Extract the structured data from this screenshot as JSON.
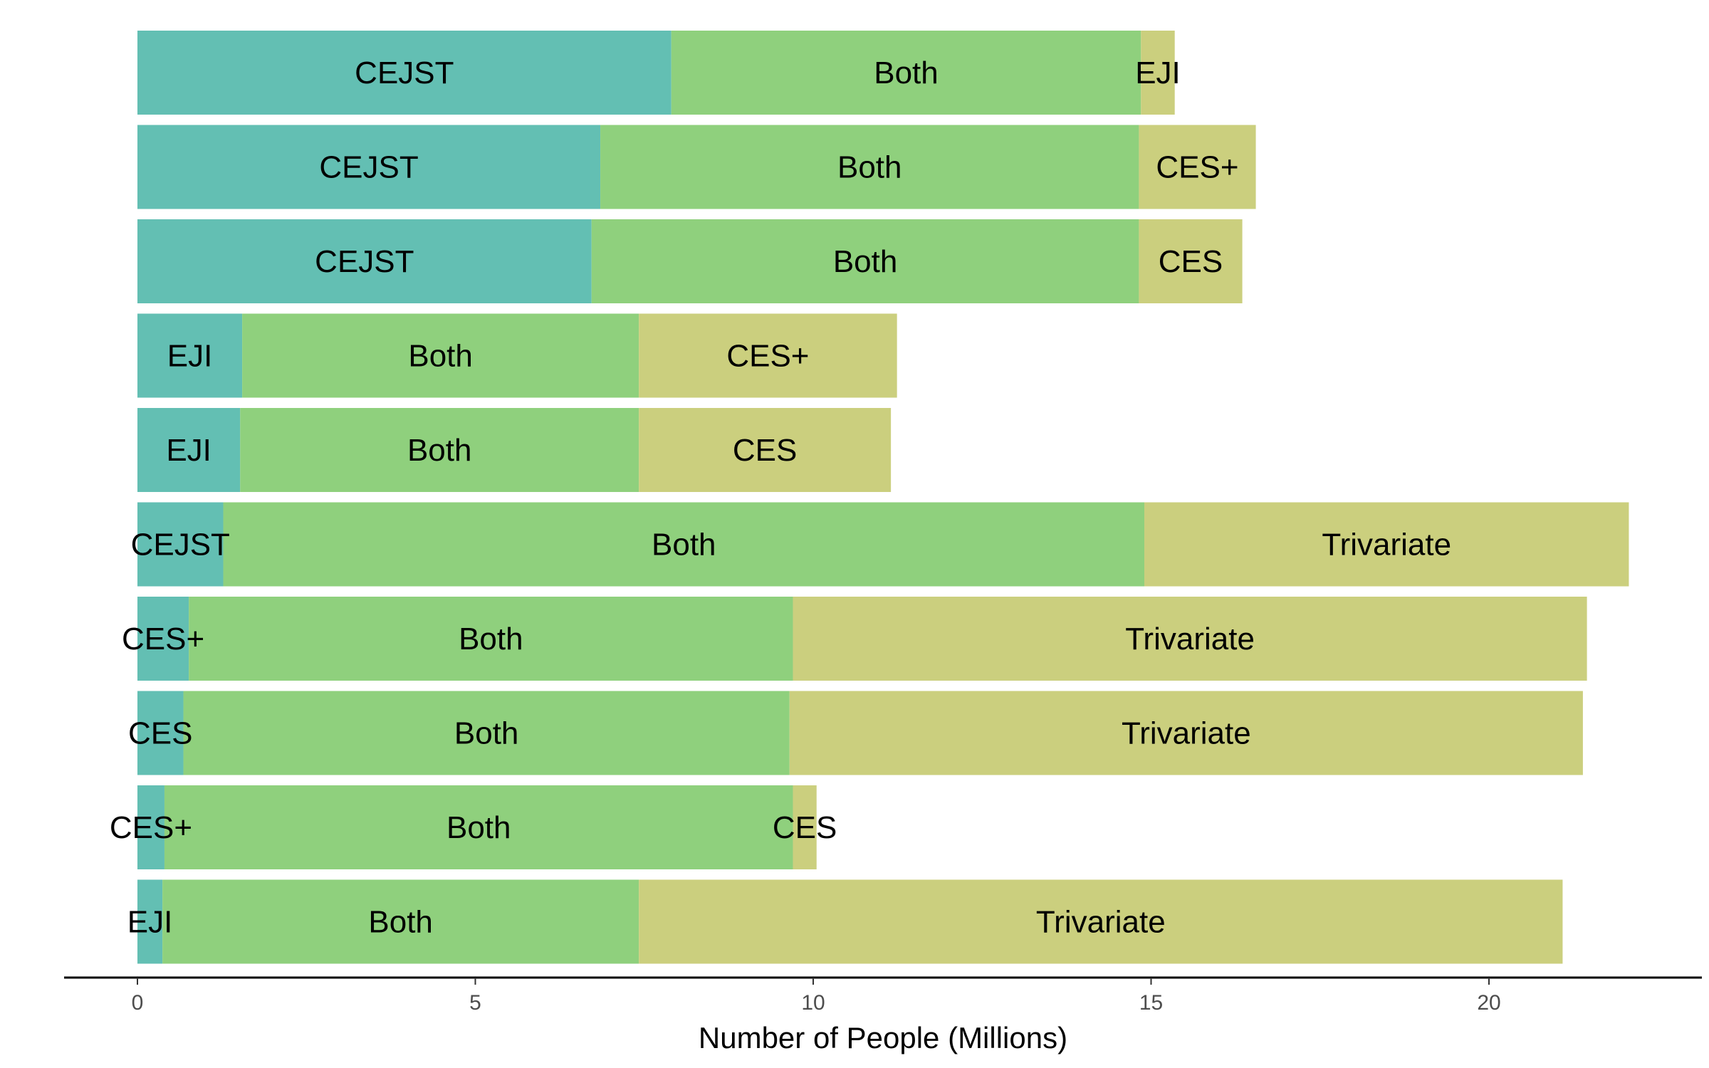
{
  "chart_data": {
    "type": "bar",
    "orientation": "horizontal",
    "stacked": true,
    "xlabel": "Number of People (Millions)",
    "ylabel": "",
    "xlim": [
      0,
      22.5
    ],
    "xticks": [
      0,
      5,
      10,
      15,
      20
    ],
    "grid": false,
    "legend": "none",
    "colors": {
      "first": "#63bfb3",
      "both": "#8fd07d",
      "third": "#cbcf7e"
    },
    "bars": [
      {
        "segments": [
          {
            "label": "CEJST",
            "value": 7.9
          },
          {
            "label": "Both",
            "value": 6.95
          },
          {
            "label": "EJI",
            "value": 0.5
          }
        ]
      },
      {
        "segments": [
          {
            "label": "CEJST",
            "value": 6.85
          },
          {
            "label": "Both",
            "value": 7.97
          },
          {
            "label": "CES+",
            "value": 1.73
          }
        ]
      },
      {
        "segments": [
          {
            "label": "CEJST",
            "value": 6.72
          },
          {
            "label": "Both",
            "value": 8.1
          },
          {
            "label": "CES",
            "value": 1.53
          }
        ]
      },
      {
        "segments": [
          {
            "label": "EJI",
            "value": 1.55
          },
          {
            "label": "Both",
            "value": 5.87
          },
          {
            "label": "CES+",
            "value": 3.82
          }
        ]
      },
      {
        "segments": [
          {
            "label": "EJI",
            "value": 1.52
          },
          {
            "label": "Both",
            "value": 5.9
          },
          {
            "label": "CES",
            "value": 3.73
          }
        ]
      },
      {
        "segments": [
          {
            "label": "CEJST",
            "value": 1.27
          },
          {
            "label": "Both",
            "value": 13.63
          },
          {
            "label": "Trivariate",
            "value": 7.17
          }
        ]
      },
      {
        "segments": [
          {
            "label": "CES+",
            "value": 0.76
          },
          {
            "label": "Both",
            "value": 8.94
          },
          {
            "label": "Trivariate",
            "value": 11.75
          }
        ]
      },
      {
        "segments": [
          {
            "label": "CES",
            "value": 0.68
          },
          {
            "label": "Both",
            "value": 8.97
          },
          {
            "label": "Trivariate",
            "value": 11.74
          }
        ]
      },
      {
        "segments": [
          {
            "label": "CES+",
            "value": 0.4
          },
          {
            "label": "Both",
            "value": 9.3
          },
          {
            "label": "CES",
            "value": 0.35
          }
        ]
      },
      {
        "segments": [
          {
            "label": "EJI",
            "value": 0.37
          },
          {
            "label": "Both",
            "value": 7.05
          },
          {
            "label": "Trivariate",
            "value": 13.67
          }
        ]
      }
    ]
  }
}
